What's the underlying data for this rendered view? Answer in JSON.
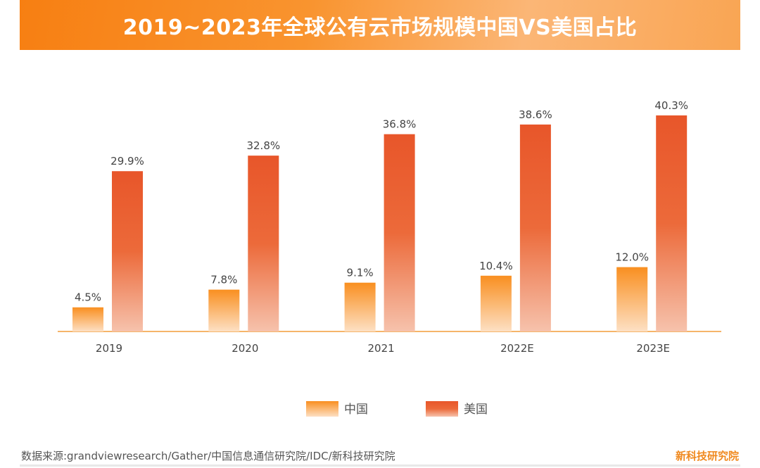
{
  "chart_data": {
    "type": "bar",
    "title": "2019~2023年全球公有云市场规模中国VS美国占比",
    "categories": [
      "2019",
      "2020",
      "2021",
      "2022E",
      "2023E"
    ],
    "series": [
      {
        "name": "中国",
        "values": [
          4.5,
          7.8,
          9.1,
          10.4,
          12.0
        ],
        "labels": [
          "4.5%",
          "7.8%",
          "9.1%",
          "10.4%",
          "12.0%"
        ],
        "color": "#f98f20"
      },
      {
        "name": "美国",
        "values": [
          29.9,
          32.8,
          36.8,
          38.6,
          40.3
        ],
        "labels": [
          "29.9%",
          "32.8%",
          "36.8%",
          "38.6%",
          "40.3%"
        ],
        "color": "#e8562a"
      }
    ],
    "unit": "%",
    "ylim": [
      0,
      40.3
    ],
    "grid": false,
    "legend": "bottom"
  },
  "footer": {
    "source": "数据来源:grandviewresearch/Gather/中国信息通信研究院/IDC/新科技研究院",
    "brand": "新科技研究院"
  }
}
